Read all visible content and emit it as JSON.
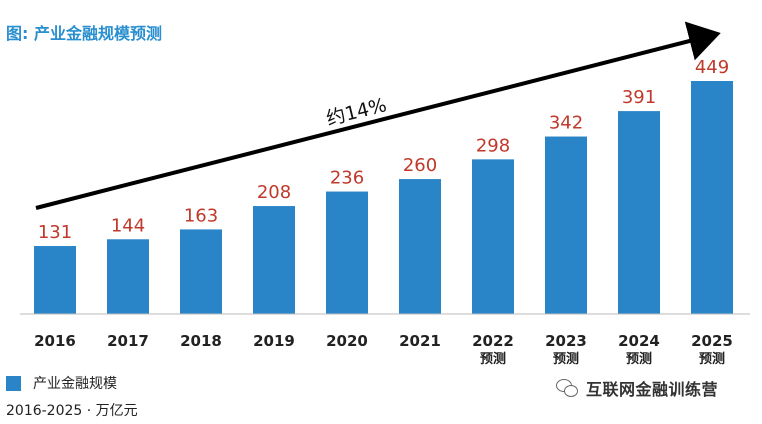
{
  "header": {
    "title": "图: 产业金融规模预测"
  },
  "legend": {
    "label": "产业金融规模",
    "color": "#2a85c8"
  },
  "note": "2016-2025 · 万亿元",
  "watermark": {
    "text": "互联网金融训练营",
    "icon": "wechat-icon"
  },
  "colors": {
    "bar": "#2a85c8",
    "value_label": "#c0392b",
    "title": "#2a8fcf",
    "arrow": "#000000"
  },
  "chart_data": {
    "type": "bar",
    "categories": [
      "2016",
      "2017",
      "2018",
      "2019",
      "2020",
      "2021",
      "2022",
      "2023",
      "2024",
      "2025"
    ],
    "sublabels": [
      "",
      "",
      "",
      "",
      "",
      "",
      "预测",
      "预测",
      "预测",
      "预测"
    ],
    "series": [
      {
        "name": "产业金融规模",
        "values": [
          131,
          144,
          163,
          208,
          236,
          260,
          298,
          342,
          391,
          449
        ]
      }
    ],
    "ylim": [
      0,
      500
    ],
    "grid": false,
    "legend_position": "bottom-left",
    "annotation": {
      "text": "约14%",
      "kind": "growth-arrow"
    }
  }
}
